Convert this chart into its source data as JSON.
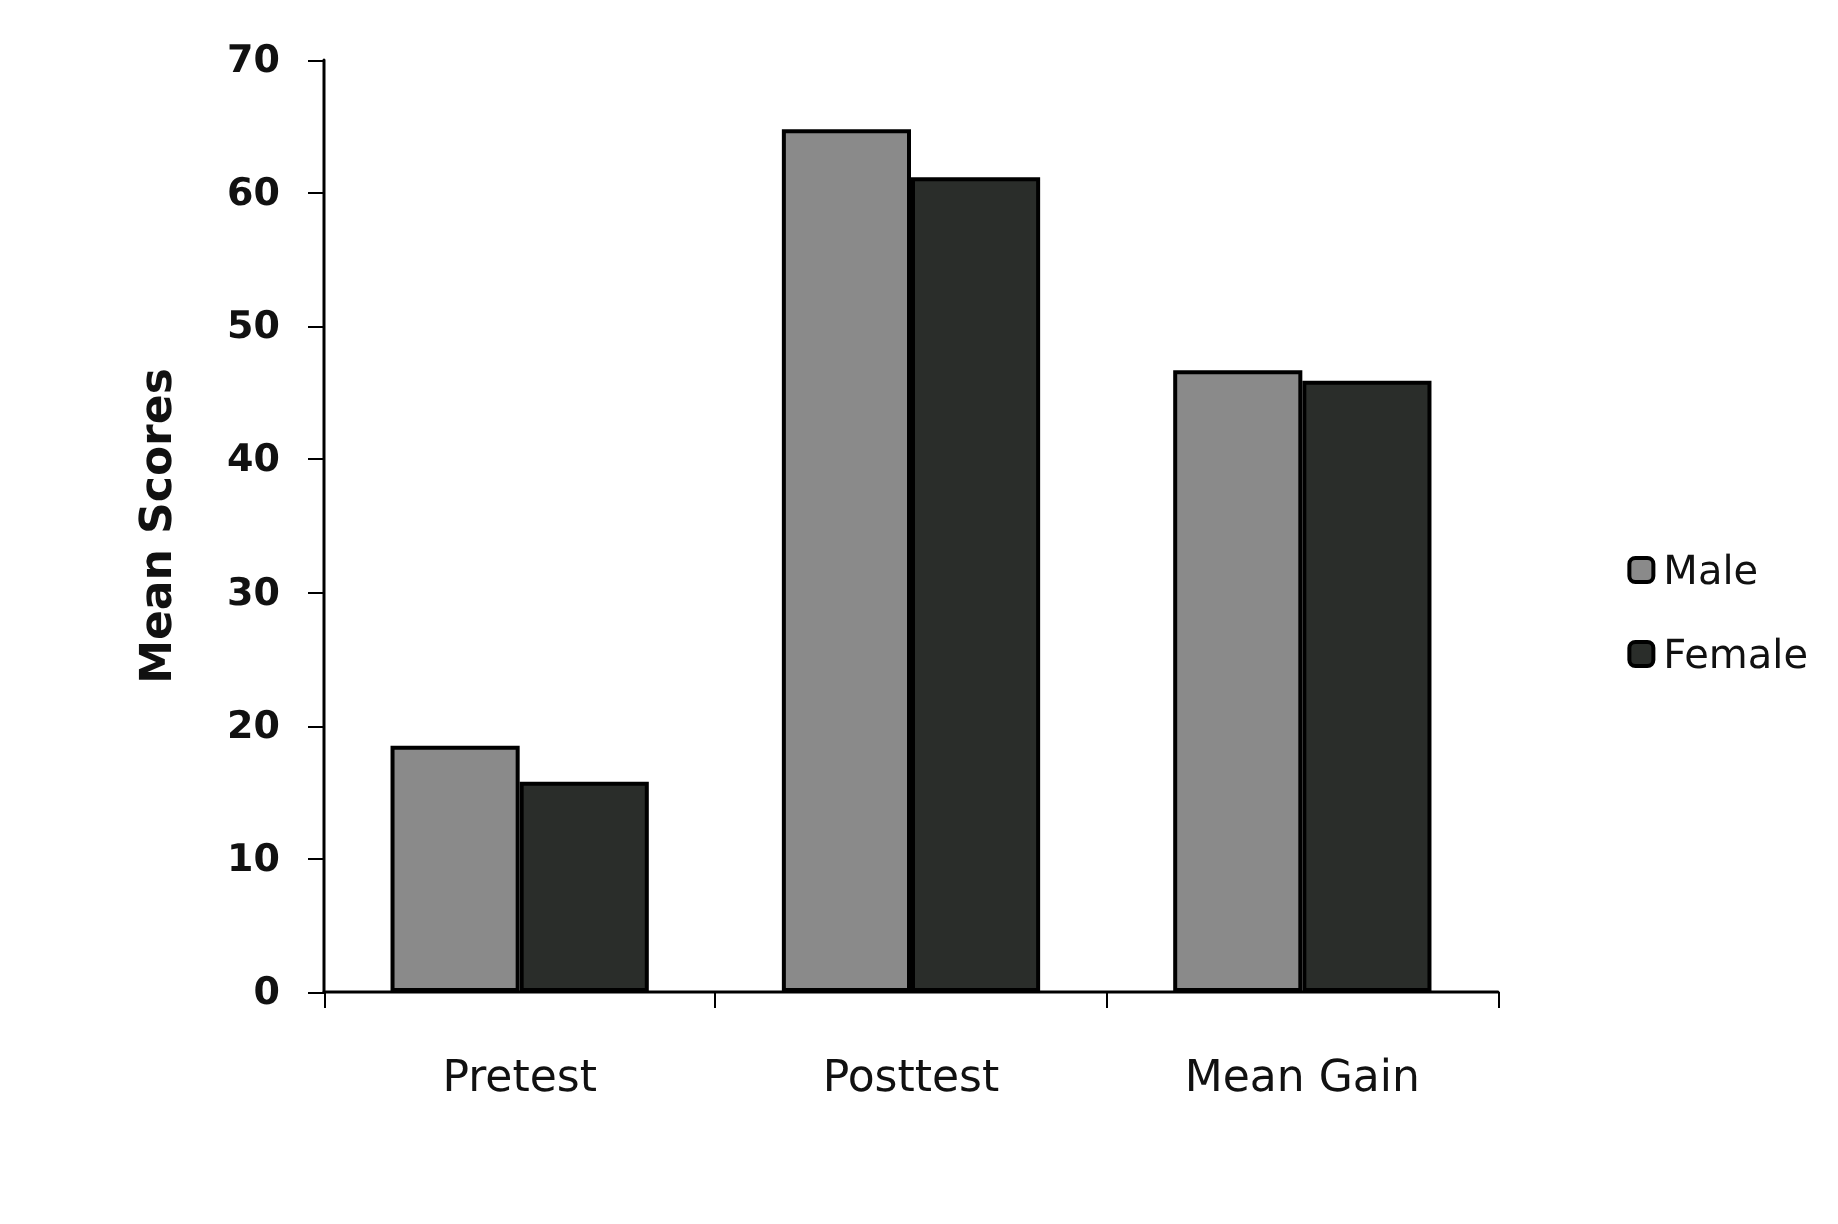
{
  "chart_data": {
    "type": "bar",
    "ylabel": "Mean Scores",
    "categories": [
      "Pretest",
      "Posttest",
      "Mean Gain"
    ],
    "series": [
      {
        "name": "Male",
        "color": "#8a8a8a",
        "values": [
          18.5,
          64.8,
          46.7
        ]
      },
      {
        "name": "Female",
        "color": "#2a2d2a",
        "values": [
          15.8,
          61.2,
          45.9
        ]
      }
    ],
    "ylim": [
      0,
      70
    ],
    "yticks": [
      0,
      10,
      20,
      30,
      40,
      50,
      60,
      70
    ],
    "grid": false,
    "legend": "right"
  }
}
